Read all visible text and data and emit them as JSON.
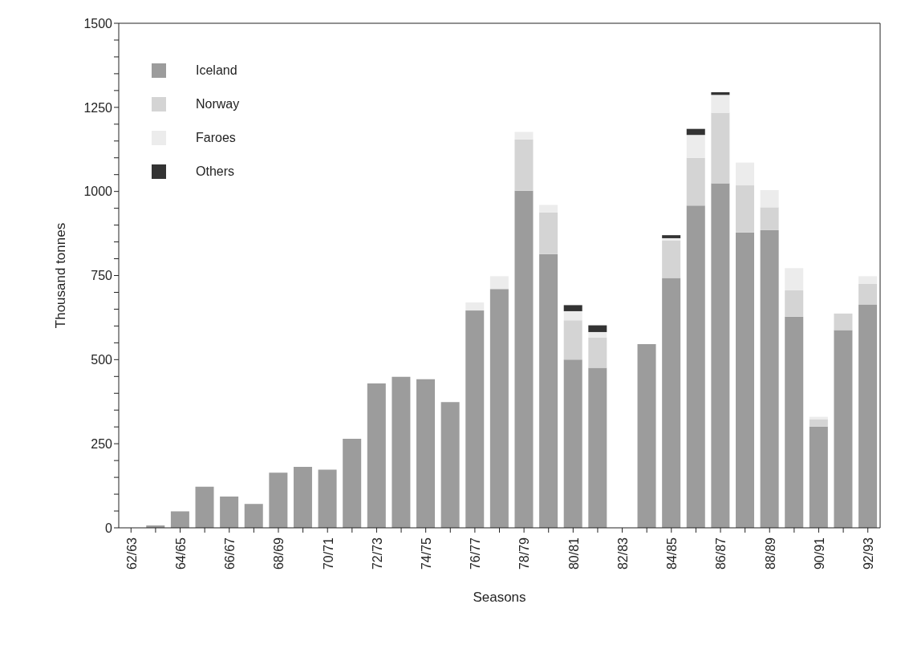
{
  "chart_data": {
    "type": "bar",
    "stacked": true,
    "xlabel": "Seasons",
    "ylabel": "Thousand tonnes",
    "categories": [
      "62/63",
      null,
      "64/65",
      null,
      "66/67",
      null,
      "68/69",
      null,
      "70/71",
      null,
      "72/73",
      null,
      "74/75",
      null,
      "76/77",
      null,
      "78/79",
      null,
      "80/81",
      null,
      "82/83",
      null,
      "84/85",
      null,
      "86/87",
      null,
      "88/89",
      null,
      "90/91",
      null,
      "92/93"
    ],
    "series": [
      {
        "name": "Iceland",
        "color": "#9c9c9c",
        "values": [
          0,
          7,
          49,
          122,
          93,
          71,
          164,
          181,
          173,
          265,
          429,
          449,
          442,
          374,
          646,
          710,
          1002,
          814,
          500,
          476,
          0,
          546,
          743,
          958,
          1024,
          878,
          885,
          628,
          301,
          588,
          664
        ]
      },
      {
        "name": "Norway",
        "color": "#d4d4d4",
        "values": [
          0,
          0,
          0,
          0,
          0,
          0,
          0,
          0,
          0,
          0,
          0,
          0,
          0,
          0,
          0,
          0,
          153,
          124,
          117,
          90,
          0,
          0,
          111,
          142,
          210,
          140,
          68,
          78,
          22,
          49,
          62
        ]
      },
      {
        "name": "Faroes",
        "color": "#ececec",
        "values": [
          0,
          0,
          0,
          0,
          0,
          0,
          0,
          0,
          0,
          0,
          0,
          0,
          0,
          0,
          24,
          38,
          22,
          22,
          27,
          16,
          0,
          0,
          7,
          68,
          53,
          68,
          51,
          66,
          7,
          0,
          22
        ]
      },
      {
        "name": "Others",
        "color": "#333333",
        "values": [
          0,
          0,
          0,
          0,
          0,
          0,
          0,
          0,
          0,
          0,
          0,
          0,
          0,
          0,
          0,
          0,
          0,
          0,
          18,
          20,
          0,
          0,
          9,
          18,
          8,
          0,
          0,
          0,
          0,
          0,
          0
        ]
      }
    ],
    "ylim": [
      0,
      1500
    ],
    "yticks": [
      0,
      {
        "value": 50,
        "label": null
      },
      {
        "value": 100,
        "label": null
      },
      {
        "value": 150,
        "label": null
      },
      {
        "value": 200,
        "label": null
      },
      250,
      {
        "value": 300,
        "label": null
      },
      {
        "value": 350,
        "label": null
      },
      {
        "value": 400,
        "label": null
      },
      {
        "value": 450,
        "label": null
      },
      500,
      {
        "value": 550,
        "label": null
      },
      {
        "value": 600,
        "label": null
      },
      {
        "value": 650,
        "label": null
      },
      {
        "value": 700,
        "label": null
      },
      750,
      {
        "value": 800,
        "label": null
      },
      {
        "value": 850,
        "label": null
      },
      {
        "value": 900,
        "label": null
      },
      {
        "value": 950,
        "label": null
      },
      1000,
      {
        "value": 1050,
        "label": null
      },
      {
        "value": 1100,
        "label": null
      },
      {
        "value": 1150,
        "label": null
      },
      {
        "value": 1200,
        "label": null
      },
      1250,
      {
        "value": 1300,
        "label": null
      },
      {
        "value": 1350,
        "label": null
      },
      {
        "value": 1400,
        "label": null
      },
      {
        "value": 1450,
        "label": null
      },
      1500
    ],
    "legend": "top left",
    "grid": false
  }
}
